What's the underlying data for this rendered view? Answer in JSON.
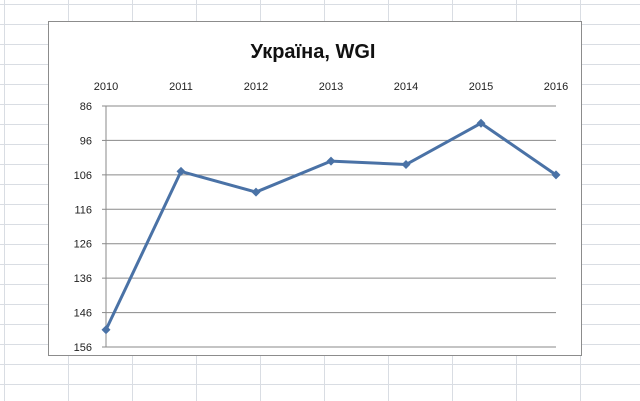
{
  "chart_data": {
    "type": "line",
    "title": "Україна, WGI",
    "xlabel": "",
    "ylabel": "",
    "categories": [
      "2010",
      "2011",
      "2012",
      "2013",
      "2014",
      "2015",
      "2016"
    ],
    "series": [
      {
        "values": [
          151,
          105,
          111,
          102,
          103,
          91,
          106
        ],
        "color": "#4a72a6",
        "marker": "diamond"
      }
    ],
    "y_ticks": [
      "86",
      "96",
      "106",
      "116",
      "126",
      "136",
      "146",
      "156"
    ],
    "ylim": [
      86,
      156
    ],
    "y_inverted": true,
    "x_axis_position": "top",
    "grid": true,
    "legend": "none"
  }
}
